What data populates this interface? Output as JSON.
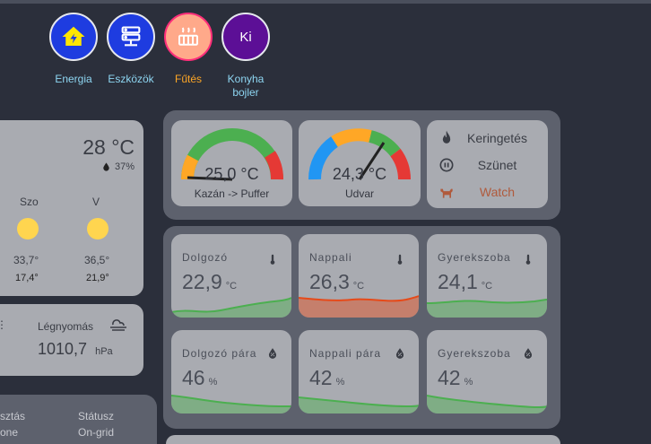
{
  "nav": [
    {
      "label": "Energia",
      "bg": "#1e3ce0",
      "icon": "home-lightning-icon"
    },
    {
      "label": "Eszközök",
      "bg": "#1e3ce0",
      "icon": "server-icon"
    },
    {
      "label": "Fűtés",
      "bg": "#ffa98a",
      "icon": "radiator-icon",
      "active": true
    },
    {
      "label": "Konyha\nbojler",
      "bg": "#5c0f96",
      "icon": "ki-text-icon",
      "text": "Ki"
    }
  ],
  "weather": {
    "temp": "28 °C",
    "humidity": "37%",
    "days": [
      {
        "name": "Szo",
        "high": "33,7°",
        "low": "17,4°"
      },
      {
        "name": "V",
        "high": "36,5°",
        "low": "21,9°"
      }
    ],
    "pressure_label": "Légnyomás",
    "pressure_value": "1010,7",
    "pressure_unit": "hPa"
  },
  "status": {
    "col1_label": "sztás",
    "col1_value": "one",
    "col2_label": "Státusz",
    "col2_value": "On-grid"
  },
  "gauges": [
    {
      "value": "25,0 °C",
      "label": "Kazán -> Puffer",
      "fraction": 0.02
    },
    {
      "value": "24,3 °C",
      "label": "Udvar",
      "fraction": 0.68
    }
  ],
  "controls": [
    {
      "label": "Keringetés",
      "icon": "fire-icon",
      "color": "#3a3d45"
    },
    {
      "label": "Szünet",
      "icon": "pause-circle-icon",
      "color": "#3a3d45"
    },
    {
      "label": "Watch",
      "icon": "dog-icon",
      "color": "#b05a3c"
    }
  ],
  "sensors": [
    {
      "title": "Dolgozó",
      "value": "22,9",
      "unit": "°C",
      "icon": "thermometer-icon",
      "color": "#4caf50"
    },
    {
      "title": "Nappali",
      "value": "26,3",
      "unit": "°C",
      "icon": "thermometer-icon",
      "color": "#e64a19"
    },
    {
      "title": "Gyerekszoba",
      "value": "24,1",
      "unit": "°C",
      "icon": "thermometer-icon",
      "color": "#4caf50"
    },
    {
      "title": "Dolgozó pára",
      "value": "46",
      "unit": "%",
      "icon": "water-percent-icon",
      "color": "#4caf50"
    },
    {
      "title": "Nappali pára",
      "value": "42",
      "unit": "%",
      "icon": "water-percent-icon",
      "color": "#4caf50"
    },
    {
      "title": "Gyerekszoba",
      "value": "42",
      "unit": "%",
      "icon": "water-percent-icon",
      "color": "#4caf50"
    }
  ]
}
